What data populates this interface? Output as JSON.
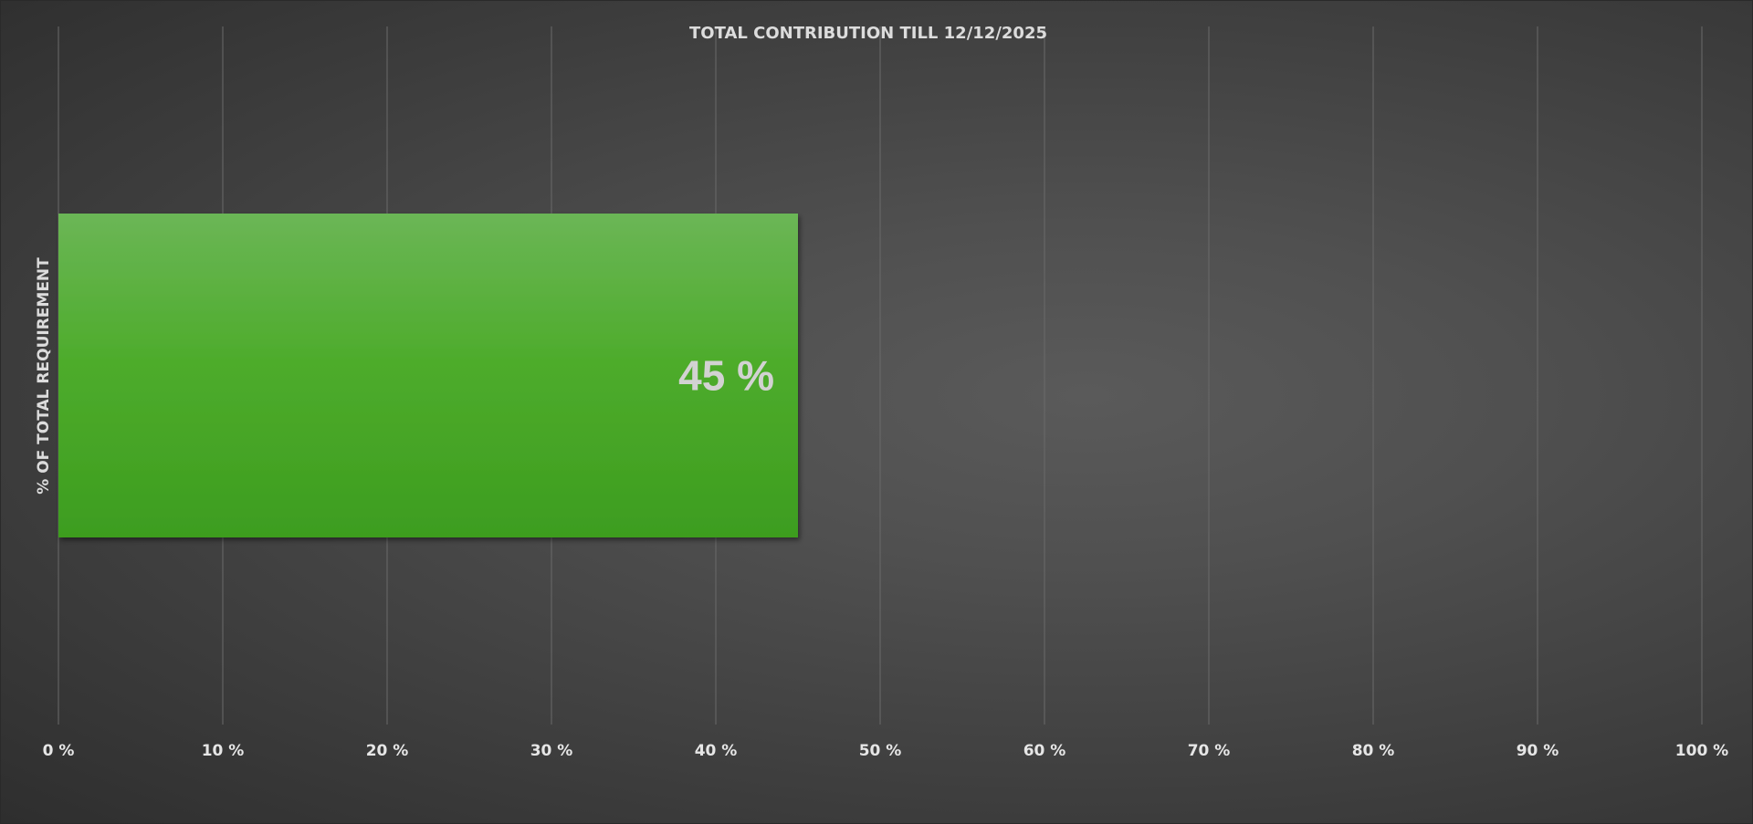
{
  "chart_data": {
    "type": "bar",
    "orientation": "horizontal",
    "title": "TOTAL CONTRIBUTION TILL 12/12/2025",
    "ylabel": "% OF TOTAL REQUIREMENT",
    "xlabel": "",
    "xlim": [
      0,
      100
    ],
    "x_ticks": [
      0,
      10,
      20,
      30,
      40,
      50,
      60,
      70,
      80,
      90,
      100
    ],
    "x_tick_labels": [
      "0 %",
      "10 %",
      "20 %",
      "30 %",
      "40 %",
      "50 %",
      "60 %",
      "70 %",
      "80 %",
      "90 %",
      "100 %"
    ],
    "grid": "vertical",
    "legend": "none",
    "series": [
      {
        "values": [
          45
        ],
        "data_labels": [
          "45 %"
        ],
        "color": "#4aa82a"
      }
    ]
  },
  "colors": {
    "background_center": "#5a5a5a",
    "background_edge": "#2e2e2e",
    "bar_top": "#6bb656",
    "bar_bottom": "#3d9d1f",
    "text": "#dcdcdc",
    "gridline": "#6a6a6a"
  }
}
